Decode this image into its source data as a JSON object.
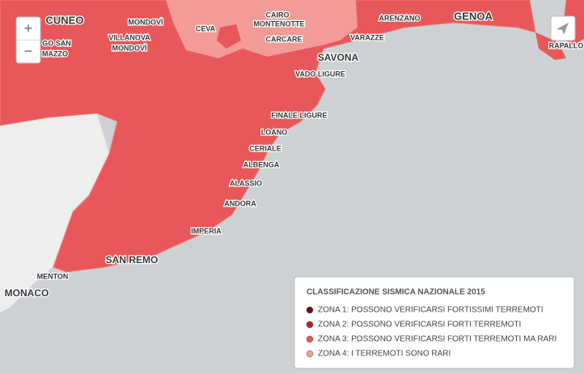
{
  "map": {
    "labels": [
      "CUNEO",
      "MONDOVÌ",
      "GO SAN",
      "MAZZO",
      "VILLANOVA",
      "MONDOVÌ",
      "CEVA",
      "CAIRO",
      "MONTENOTTE",
      "CARCARE",
      "ARENZANO",
      "GENOA",
      "VARAZZE",
      "SAVONA",
      "VADO LIGURE",
      "FINALE LIGURE",
      "LOANO",
      "CERIALE",
      "ALBENGA",
      "ALASSIO",
      "ANDORA",
      "IMPERIA",
      "SAN REMO",
      "MENTON",
      "MONACO",
      "RAPALLO"
    ]
  },
  "controls": {
    "zoom_in": "+",
    "zoom_out": "−"
  },
  "legend": {
    "title": "CLASSIFICAZIONE SISMICA NAZIONALE 2015",
    "items": [
      {
        "label": "ZONA 1: POSSONO VERIFICARSI FORTISSIMI TERREMOTI",
        "color": "#7a0a0a"
      },
      {
        "label": "ZONA 2: POSSONO VERIFICARSI FORTI TERREMOTI",
        "color": "#b3221e"
      },
      {
        "label": "ZONA 3: POSSONO VERIFICARSI FORTI TERREMOTI MA RARI",
        "color": "#e35a58"
      },
      {
        "label": "ZONA 4: I TERREMOTI SONO RARI",
        "color": "#f1a09b"
      }
    ]
  }
}
